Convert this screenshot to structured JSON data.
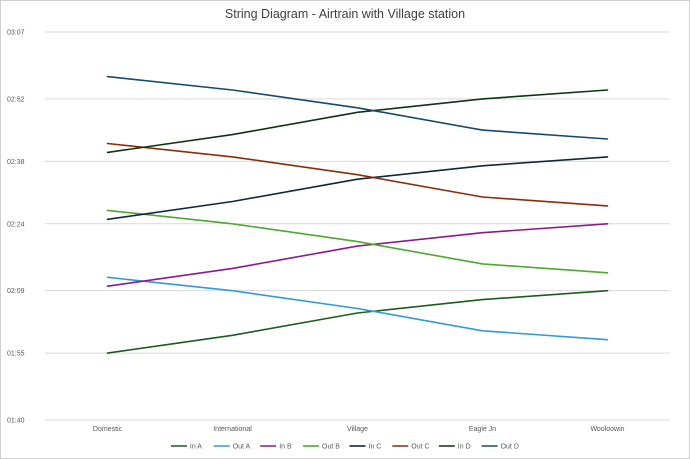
{
  "chart_data": {
    "type": "line",
    "title": "String Diagram - Airtrain with Village station",
    "xlabel": "",
    "ylabel": "",
    "categories": [
      "Domestic",
      "International",
      "Village",
      "Eagle Jn",
      "Wooloowin"
    ],
    "y_ticks": [
      "01:40",
      "01:55",
      "02:09",
      "02:24",
      "02:38",
      "02:52",
      "03:07"
    ],
    "ylim_minutes": [
      100,
      187
    ],
    "grid": "horizontal",
    "legend_position": "bottom",
    "series": [
      {
        "name": "In A",
        "color": "#1e5c1e",
        "values": [
          "01:55",
          "01:59",
          "02:04",
          "02:07",
          "02:09"
        ]
      },
      {
        "name": "Out A",
        "color": "#2e9bd6",
        "values": [
          "02:12",
          "02:09",
          "02:05",
          "02:00",
          "01:58"
        ]
      },
      {
        "name": "In B",
        "color": "#8b1a8b",
        "values": [
          "02:10",
          "02:14",
          "02:19",
          "02:22",
          "02:24"
        ]
      },
      {
        "name": "Out B",
        "color": "#4ea72e",
        "values": [
          "02:27",
          "02:24",
          "02:20",
          "02:15",
          "02:13"
        ]
      },
      {
        "name": "In C",
        "color": "#0e2841",
        "values": [
          "02:25",
          "02:29",
          "02:34",
          "02:37",
          "02:39"
        ]
      },
      {
        "name": "Out C",
        "color": "#8b2d0c",
        "values": [
          "02:42",
          "02:39",
          "02:35",
          "02:30",
          "02:28"
        ]
      },
      {
        "name": "In D",
        "color": "#0d3512",
        "values": [
          "02:40",
          "02:44",
          "02:49",
          "02:52",
          "02:54"
        ]
      },
      {
        "name": "Out D",
        "color": "#154a6e",
        "values": [
          "02:57",
          "02:54",
          "02:50",
          "02:45",
          "02:43"
        ]
      }
    ]
  }
}
